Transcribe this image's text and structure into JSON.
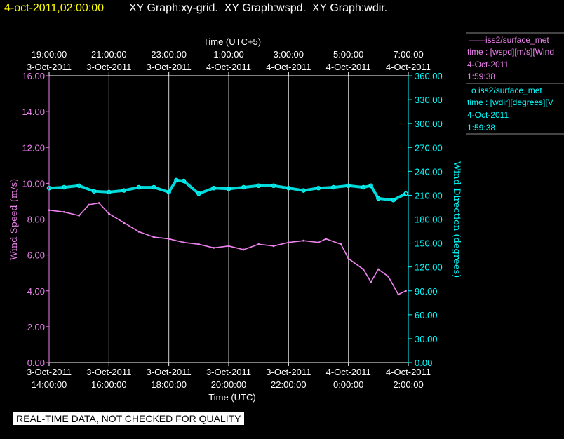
{
  "header": {
    "timestamp": "4-oct-2011,02:00:00",
    "graphs": "XY Graph:xy-grid.  XY Graph:wspd.  XY Graph:wdir."
  },
  "legend": [
    {
      "marker": "——",
      "title": "iss2/surface_met",
      "line2": "time : [wspd][m/s][Wind",
      "line3": "4-Oct-2011",
      "line4": "1:59:38",
      "color": "#ee82ee"
    },
    {
      "marker": "o ",
      "title": "iss2/surface_met",
      "line2": "time : [wdir][degrees][V",
      "line3": "4-Oct-2011",
      "line4": "1:59:38",
      "color": "#00ffff"
    }
  ],
  "banner": "REAL-TIME DATA, NOT CHECKED FOR QUALITY",
  "chart_data": {
    "type": "line",
    "top_axis_title": "Time (UTC+5)",
    "xlabel": "Time (UTC)",
    "ylabel": "Wind Speed (m/s)",
    "y2label": "Wind Direction (degrees)",
    "bottom_ticks": [
      {
        "date": "3-Oct-2011",
        "time": "14:00:00"
      },
      {
        "date": "3-Oct-2011",
        "time": "16:00:00"
      },
      {
        "date": "3-Oct-2011",
        "time": "18:00:00"
      },
      {
        "date": "3-Oct-2011",
        "time": "20:00:00"
      },
      {
        "date": "3-Oct-2011",
        "time": "22:00:00"
      },
      {
        "date": "4-Oct-2011",
        "time": "0:00:00"
      },
      {
        "date": "4-Oct-2011",
        "time": "2:00:00"
      }
    ],
    "top_ticks": [
      {
        "time": "19:00:00",
        "date": "3-Oct-2011"
      },
      {
        "time": "21:00:00",
        "date": "3-Oct-2011"
      },
      {
        "time": "23:00:00",
        "date": "3-Oct-2011"
      },
      {
        "time": "1:00:00",
        "date": "4-Oct-2011"
      },
      {
        "time": "3:00:00",
        "date": "4-Oct-2011"
      },
      {
        "time": "5:00:00",
        "date": "4-Oct-2011"
      },
      {
        "time": "7:00:00",
        "date": "4-Oct-2011"
      }
    ],
    "xlim": [
      "2011-10-03T14:00:00",
      "2011-10-04T02:00:00"
    ],
    "ylim": [
      0,
      16
    ],
    "y2lim": [
      0,
      360
    ],
    "yticks": [
      "0.00",
      "2.00",
      "4.00",
      "6.00",
      "8.00",
      "10.00",
      "12.00",
      "14.00",
      "16.00"
    ],
    "y2ticks": [
      "0.00",
      "30.00",
      "60.00",
      "90.00",
      "120.00",
      "150.00",
      "180.00",
      "210.00",
      "240.00",
      "270.00",
      "300.00",
      "330.00",
      "360.00"
    ],
    "vertical_grid": true,
    "series": [
      {
        "name": "iss2/surface_met",
        "axis": "left",
        "style": "line",
        "color": "#ee82ee",
        "x": [
          "2011-10-03T14:00:00",
          "2011-10-03T14:30:00",
          "2011-10-03T15:00:00",
          "2011-10-03T15:20:00",
          "2011-10-03T15:40:00",
          "2011-10-03T16:00:00",
          "2011-10-03T16:30:00",
          "2011-10-03T17:00:00",
          "2011-10-03T17:30:00",
          "2011-10-03T18:00:00",
          "2011-10-03T18:30:00",
          "2011-10-03T19:00:00",
          "2011-10-03T19:30:00",
          "2011-10-03T20:00:00",
          "2011-10-03T20:30:00",
          "2011-10-03T21:00:00",
          "2011-10-03T21:30:00",
          "2011-10-03T22:00:00",
          "2011-10-03T22:30:00",
          "2011-10-03T23:00:00",
          "2011-10-03T23:15:00",
          "2011-10-03T23:45:00",
          "2011-10-04T00:00:00",
          "2011-10-04T00:30:00",
          "2011-10-04T00:45:00",
          "2011-10-04T01:00:00",
          "2011-10-04T01:20:00",
          "2011-10-04T01:40:00",
          "2011-10-04T01:55:00"
        ],
        "values": [
          8.5,
          8.4,
          8.2,
          8.8,
          8.9,
          8.3,
          7.8,
          7.3,
          7.0,
          6.9,
          6.7,
          6.6,
          6.4,
          6.5,
          6.3,
          6.6,
          6.5,
          6.7,
          6.8,
          6.7,
          6.9,
          6.6,
          5.8,
          5.2,
          4.5,
          5.2,
          4.8,
          3.8,
          4.0
        ]
      },
      {
        "name": "iss2/surface_met",
        "axis": "right",
        "style": "markers",
        "color": "#00ffff",
        "x": [
          "2011-10-03T14:00:00",
          "2011-10-03T14:30:00",
          "2011-10-03T15:00:00",
          "2011-10-03T15:30:00",
          "2011-10-03T16:00:00",
          "2011-10-03T16:30:00",
          "2011-10-03T17:00:00",
          "2011-10-03T17:30:00",
          "2011-10-03T18:00:00",
          "2011-10-03T18:15:00",
          "2011-10-03T18:30:00",
          "2011-10-03T19:00:00",
          "2011-10-03T19:30:00",
          "2011-10-03T20:00:00",
          "2011-10-03T20:30:00",
          "2011-10-03T21:00:00",
          "2011-10-03T21:30:00",
          "2011-10-03T22:00:00",
          "2011-10-03T22:30:00",
          "2011-10-03T23:00:00",
          "2011-10-03T23:30:00",
          "2011-10-04T00:00:00",
          "2011-10-04T00:30:00",
          "2011-10-04T00:45:00",
          "2011-10-04T01:00:00",
          "2011-10-04T01:30:00",
          "2011-10-04T01:55:00"
        ],
        "values": [
          219,
          220,
          222,
          215,
          214,
          216,
          220,
          220,
          214,
          229,
          228,
          212,
          219,
          218,
          220,
          222,
          222,
          219,
          216,
          219,
          220,
          222,
          220,
          222,
          206,
          204,
          212
        ]
      }
    ]
  }
}
